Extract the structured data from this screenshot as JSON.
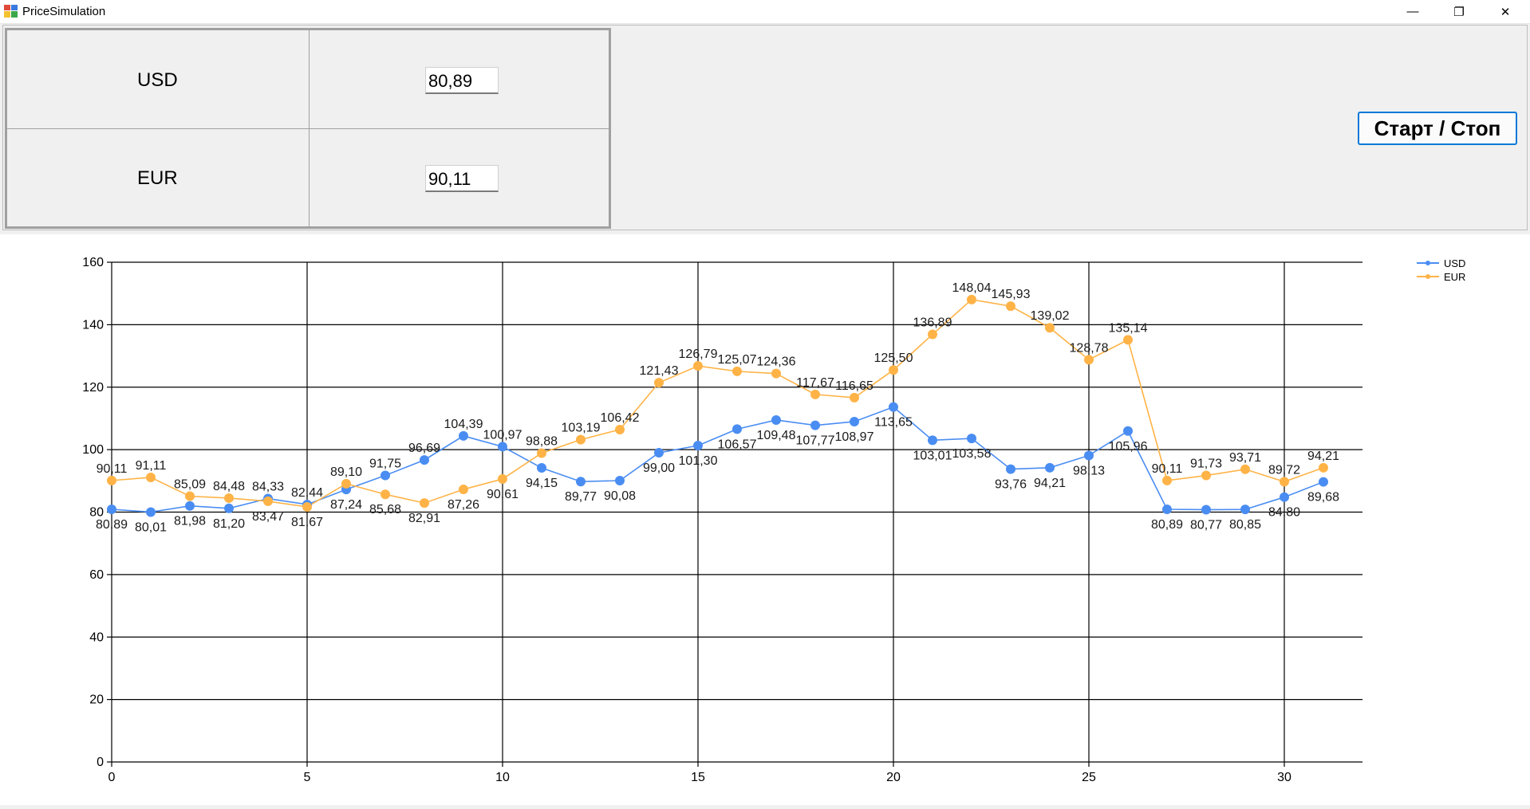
{
  "window": {
    "title": "PriceSimulation",
    "minimize_glyph": "—",
    "maximize_glyph": "❐",
    "close_glyph": "✕"
  },
  "rates": {
    "usd_label": "USD",
    "usd_value": "80,89",
    "eur_label": "EUR",
    "eur_value": "90,11"
  },
  "controls": {
    "start_stop_label": "Старт / Стоп"
  },
  "colors": {
    "usd": "#4a8df2",
    "eur": "#ffb347",
    "grid": "#000000"
  },
  "chart_data": {
    "type": "line",
    "xlim": [
      0,
      32
    ],
    "ylim": [
      0,
      160
    ],
    "xticks": [
      0,
      5,
      10,
      15,
      20,
      25,
      30
    ],
    "yticks": [
      0,
      20,
      40,
      60,
      80,
      100,
      120,
      140,
      160
    ],
    "grid": true,
    "legend_position": "top-right",
    "x": [
      0,
      1,
      2,
      3,
      4,
      5,
      6,
      7,
      8,
      9,
      10,
      11,
      12,
      13,
      14,
      15,
      16,
      17,
      18,
      19,
      20,
      21,
      22,
      23,
      24,
      25,
      26,
      27,
      28,
      29,
      30,
      31
    ],
    "series": [
      {
        "name": "USD",
        "values": [
          80.89,
          80.01,
          81.98,
          81.2,
          84.33,
          82.44,
          87.24,
          91.75,
          96.69,
          104.39,
          100.97,
          94.15,
          89.77,
          90.08,
          99.0,
          101.3,
          106.57,
          109.48,
          107.77,
          108.97,
          113.65,
          103.01,
          103.58,
          93.76,
          94.21,
          98.13,
          105.96,
          80.89,
          80.77,
          80.85,
          84.8,
          89.68
        ],
        "labels": [
          "80,89",
          "80,01",
          "81,98",
          "81,20",
          "84,33",
          "82,44",
          "87,24",
          "91,75",
          "96,69",
          "104,39",
          "100,97",
          "94,15",
          "89,77",
          "90,08",
          "99,00",
          "101,30",
          "106,57",
          "109,48",
          "107,77",
          "108,97",
          "113,65",
          "103,01",
          "103,58",
          "93,76",
          "94,21",
          "98,13",
          "105,96",
          "80,89",
          "80,77",
          "80,85",
          "84,80",
          "89,68"
        ]
      },
      {
        "name": "EUR",
        "values": [
          90.11,
          91.11,
          85.09,
          84.48,
          83.47,
          81.67,
          89.1,
          85.68,
          82.91,
          87.26,
          90.61,
          98.88,
          103.19,
          106.42,
          121.43,
          126.79,
          125.07,
          124.36,
          117.67,
          116.65,
          125.5,
          136.89,
          148.04,
          145.93,
          139.02,
          128.78,
          135.14,
          90.11,
          91.73,
          93.71,
          89.72,
          94.21
        ],
        "labels": [
          "90,11",
          "91,11",
          "85,09",
          "84,48",
          "83,47",
          "81,67",
          "89,10",
          "85,68",
          "82,91",
          "87,26",
          "90,61",
          "98,88",
          "103,19",
          "106,42",
          "121,43",
          "126,79",
          "125,07",
          "124,36",
          "117,67",
          "116,65",
          "125,50",
          "136,89",
          "148,04",
          "145,93",
          "139,02",
          "128,78",
          "135,14",
          "90,11",
          "91,73",
          "93,71",
          "89,72",
          "94,21"
        ]
      }
    ]
  }
}
